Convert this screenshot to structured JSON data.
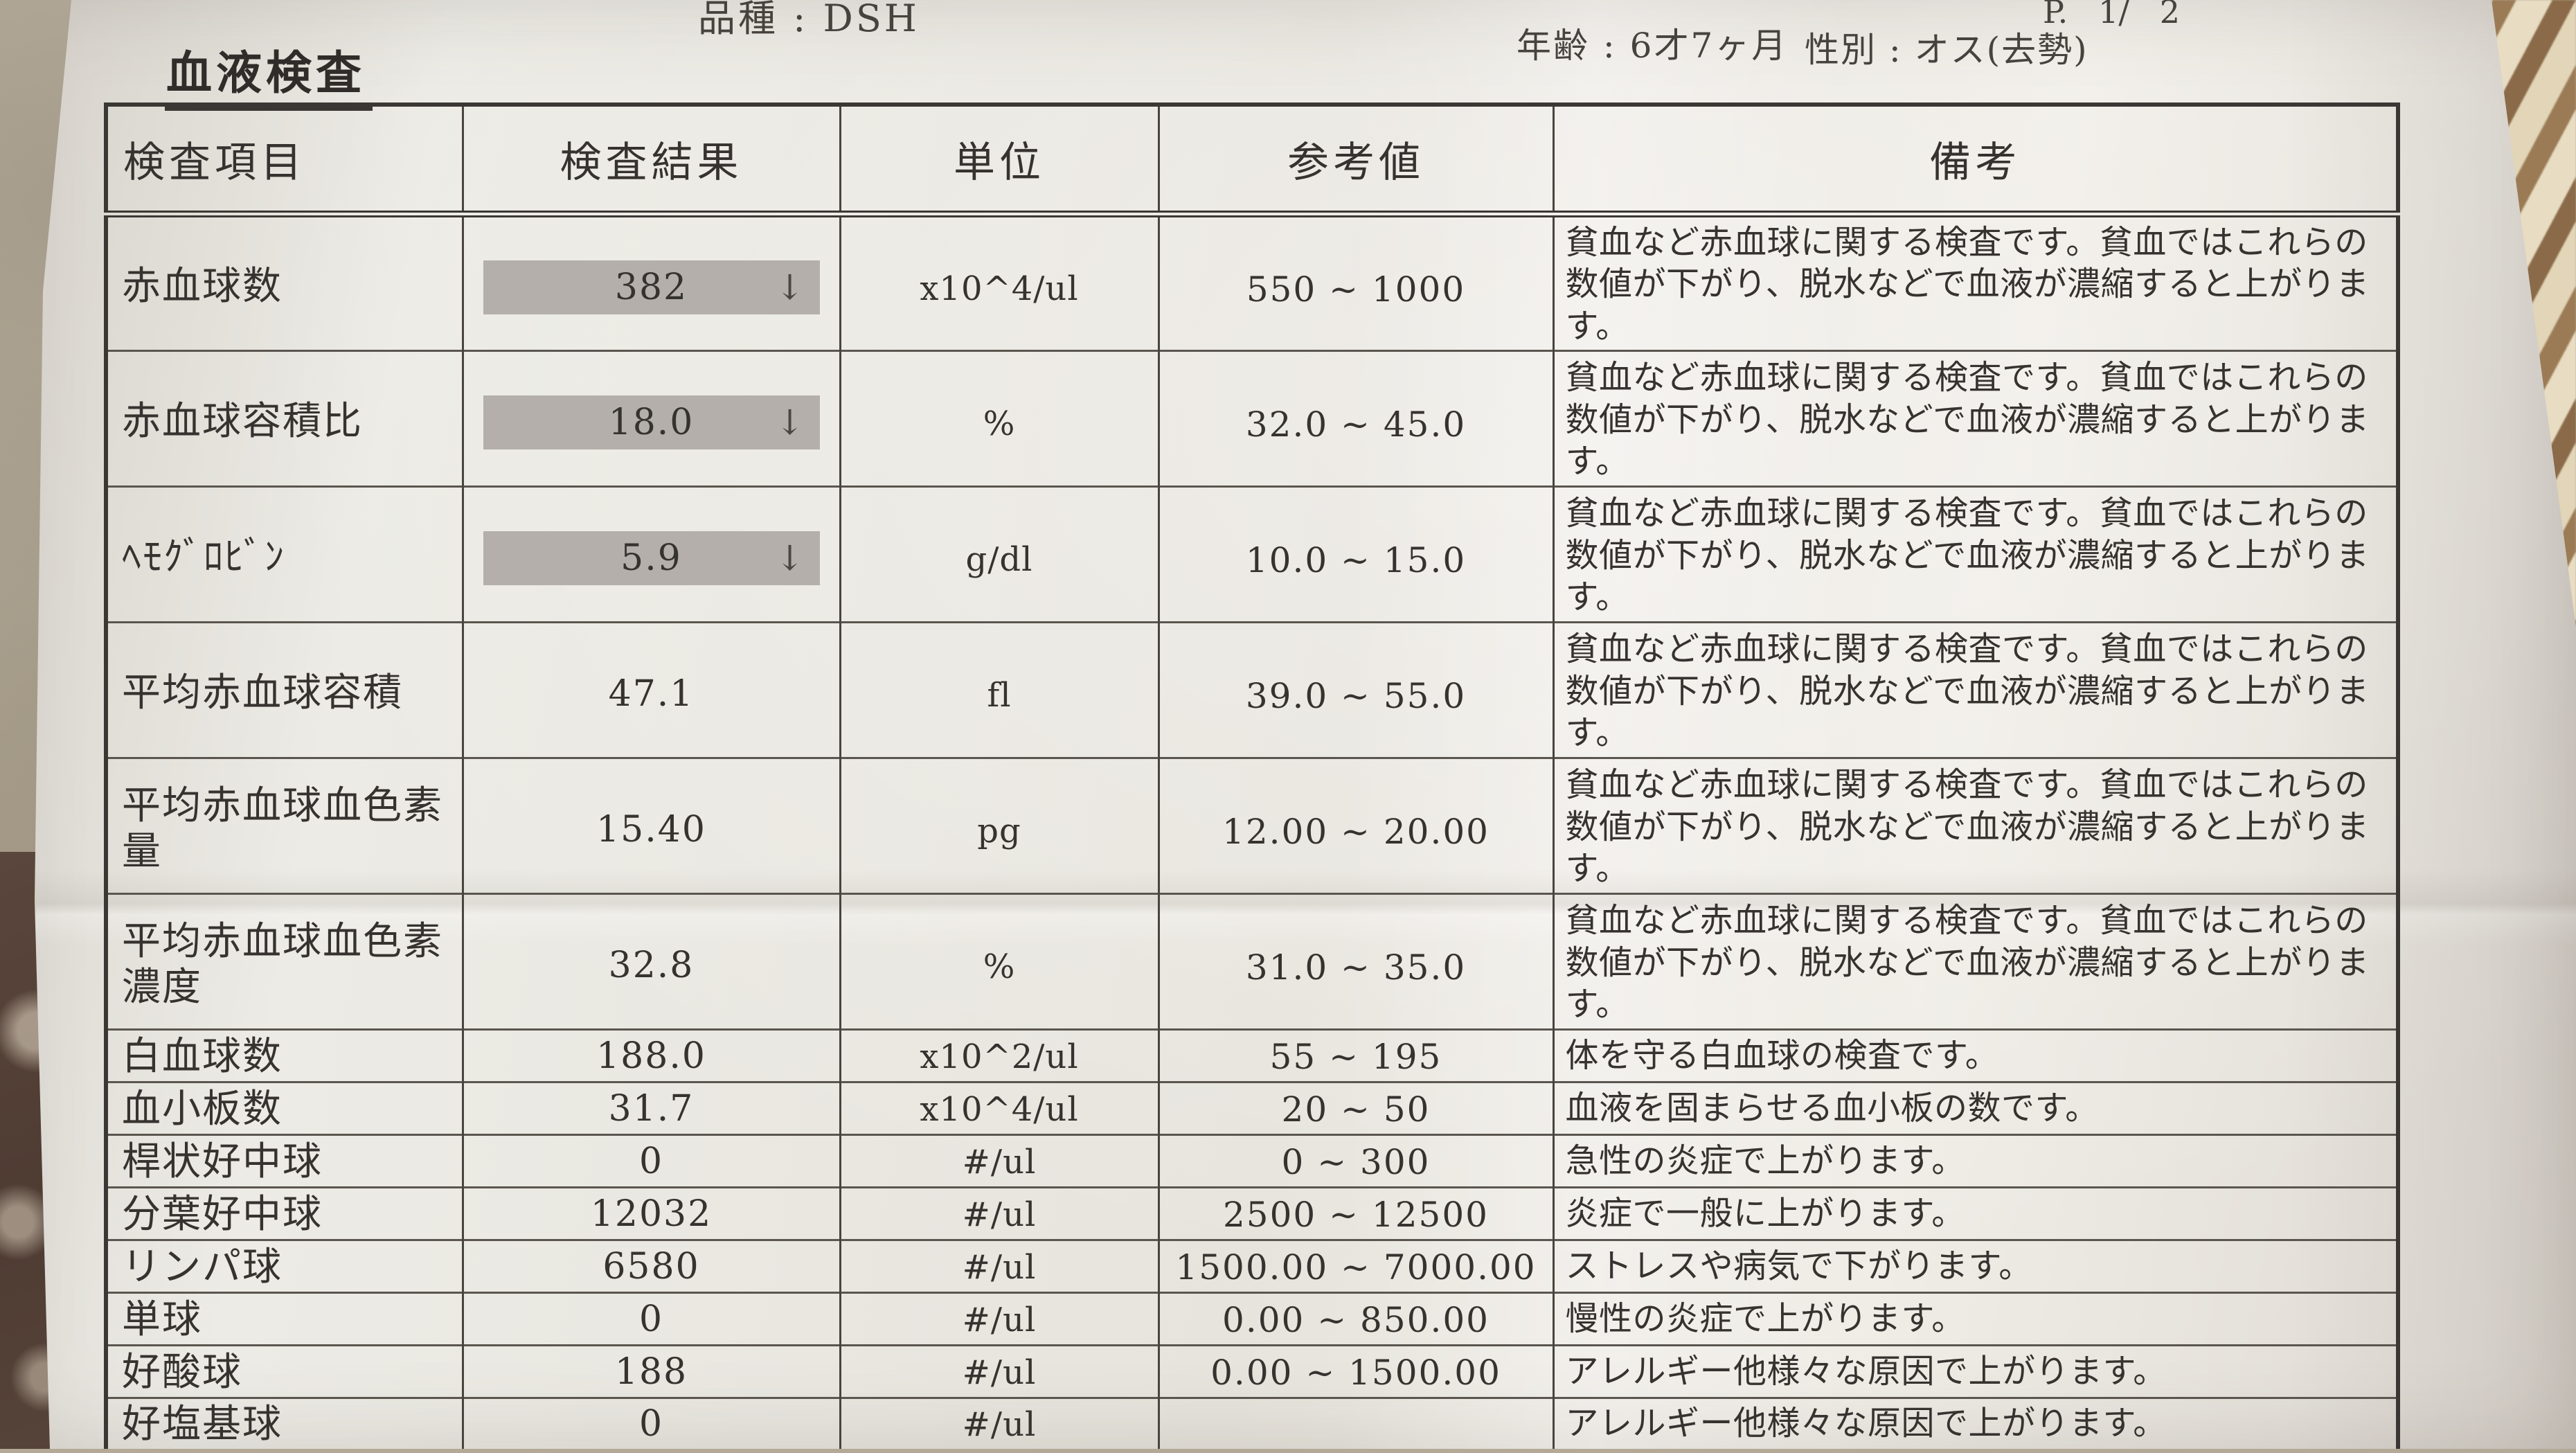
{
  "photo": {
    "colors": {
      "paper": "#eae6e0",
      "ink": "#35322f",
      "table_line": "#3f3c3a",
      "low_value_highlight": "#b4afab",
      "carpet_dark": "#52413a",
      "carpet_light": "#e2d5b8",
      "floor": "#b3a996"
    }
  },
  "page": {
    "meta": {
      "breed": "品種 : DSH",
      "age": "年齢 : 6才7ヶ月",
      "sex": "性別 : オス(去勢)",
      "page_no": "P.   1/   2"
    },
    "section_title": "血液検査",
    "table": {
      "columns": [
        "検査項目",
        "検査結果",
        "単位",
        "参考値",
        "備考"
      ],
      "rows": [
        {
          "item": "赤血球数",
          "result": "382",
          "flag": "↓",
          "low": true,
          "tall": true,
          "unit": "x10^4/ul",
          "reference": "550 ~ 1000",
          "remark": "貧血など赤血球に関する検査です。貧血ではこれらの数値が下がり、脱水などで血液が濃縮すると上がります。"
        },
        {
          "item": "赤血球容積比",
          "result": "18.0",
          "flag": "↓",
          "low": true,
          "tall": true,
          "unit": "%",
          "reference": "32.0 ~ 45.0",
          "remark": "貧血など赤血球に関する検査です。貧血ではこれらの数値が下がり、脱水などで血液が濃縮すると上がります。"
        },
        {
          "item": "ﾍﾓｸﾞﾛﾋﾞﾝ",
          "result": "5.9",
          "flag": "↓",
          "low": true,
          "tall": true,
          "unit": "g/dl",
          "reference": "10.0 ~ 15.0",
          "remark": "貧血など赤血球に関する検査です。貧血ではこれらの数値が下がり、脱水などで血液が濃縮すると上がります。"
        },
        {
          "item": "平均赤血球容積",
          "result": "47.1",
          "flag": "",
          "low": false,
          "tall": true,
          "unit": "fl",
          "reference": "39.0 ~ 55.0",
          "remark": "貧血など赤血球に関する検査です。貧血ではこれらの数値が下がり、脱水などで血液が濃縮すると上がります。"
        },
        {
          "item": "平均赤血球血色素量",
          "result": "15.40",
          "flag": "",
          "low": false,
          "tall": true,
          "unit": "pg",
          "reference": "12.00 ~ 20.00",
          "remark": "貧血など赤血球に関する検査です。貧血ではこれらの数値が下がり、脱水などで血液が濃縮すると上がります。"
        },
        {
          "item": "平均赤血球血色素濃度",
          "result": "32.8",
          "flag": "",
          "low": false,
          "tall": true,
          "unit": "%",
          "reference": "31.0 ~ 35.0",
          "remark": "貧血など赤血球に関する検査です。貧血ではこれらの数値が下がり、脱水などで血液が濃縮すると上がります。"
        },
        {
          "item": "白血球数",
          "result": "188.0",
          "flag": "",
          "low": false,
          "tall": false,
          "unit": "x10^2/ul",
          "reference": "55 ~ 195",
          "remark": "体を守る白血球の検査です。"
        },
        {
          "item": "血小板数",
          "result": "31.7",
          "flag": "",
          "low": false,
          "tall": false,
          "unit": "x10^4/ul",
          "reference": "20 ~ 50",
          "remark": "血液を固まらせる血小板の数です。"
        },
        {
          "item": "桿状好中球",
          "result": "0",
          "flag": "",
          "low": false,
          "tall": false,
          "unit": "#/ul",
          "reference": "0 ~ 300",
          "remark": "急性の炎症で上がります。"
        },
        {
          "item": "分葉好中球",
          "result": "12032",
          "flag": "",
          "low": false,
          "tall": false,
          "unit": "#/ul",
          "reference": "2500 ~ 12500",
          "remark": "炎症で一般に上がります。"
        },
        {
          "item": "リンパ球",
          "result": "6580",
          "flag": "",
          "low": false,
          "tall": false,
          "unit": "#/ul",
          "reference": "1500.00 ~ 7000.00",
          "remark": "ストレスや病気で下がります。"
        },
        {
          "item": "単球",
          "result": "0",
          "flag": "",
          "low": false,
          "tall": false,
          "unit": "#/ul",
          "reference": "0.00 ~ 850.00",
          "remark": "慢性の炎症で上がります。"
        },
        {
          "item": "好酸球",
          "result": "188",
          "flag": "",
          "low": false,
          "tall": false,
          "unit": "#/ul",
          "reference": "0.00 ~ 1500.00",
          "remark": "アレルギー他様々な原因で上がります。"
        },
        {
          "item": "好塩基球",
          "result": "0",
          "flag": "",
          "low": false,
          "tall": false,
          "unit": "#/ul",
          "reference": "",
          "remark": "アレルギー他様々な原因で上がります。"
        }
      ]
    }
  }
}
